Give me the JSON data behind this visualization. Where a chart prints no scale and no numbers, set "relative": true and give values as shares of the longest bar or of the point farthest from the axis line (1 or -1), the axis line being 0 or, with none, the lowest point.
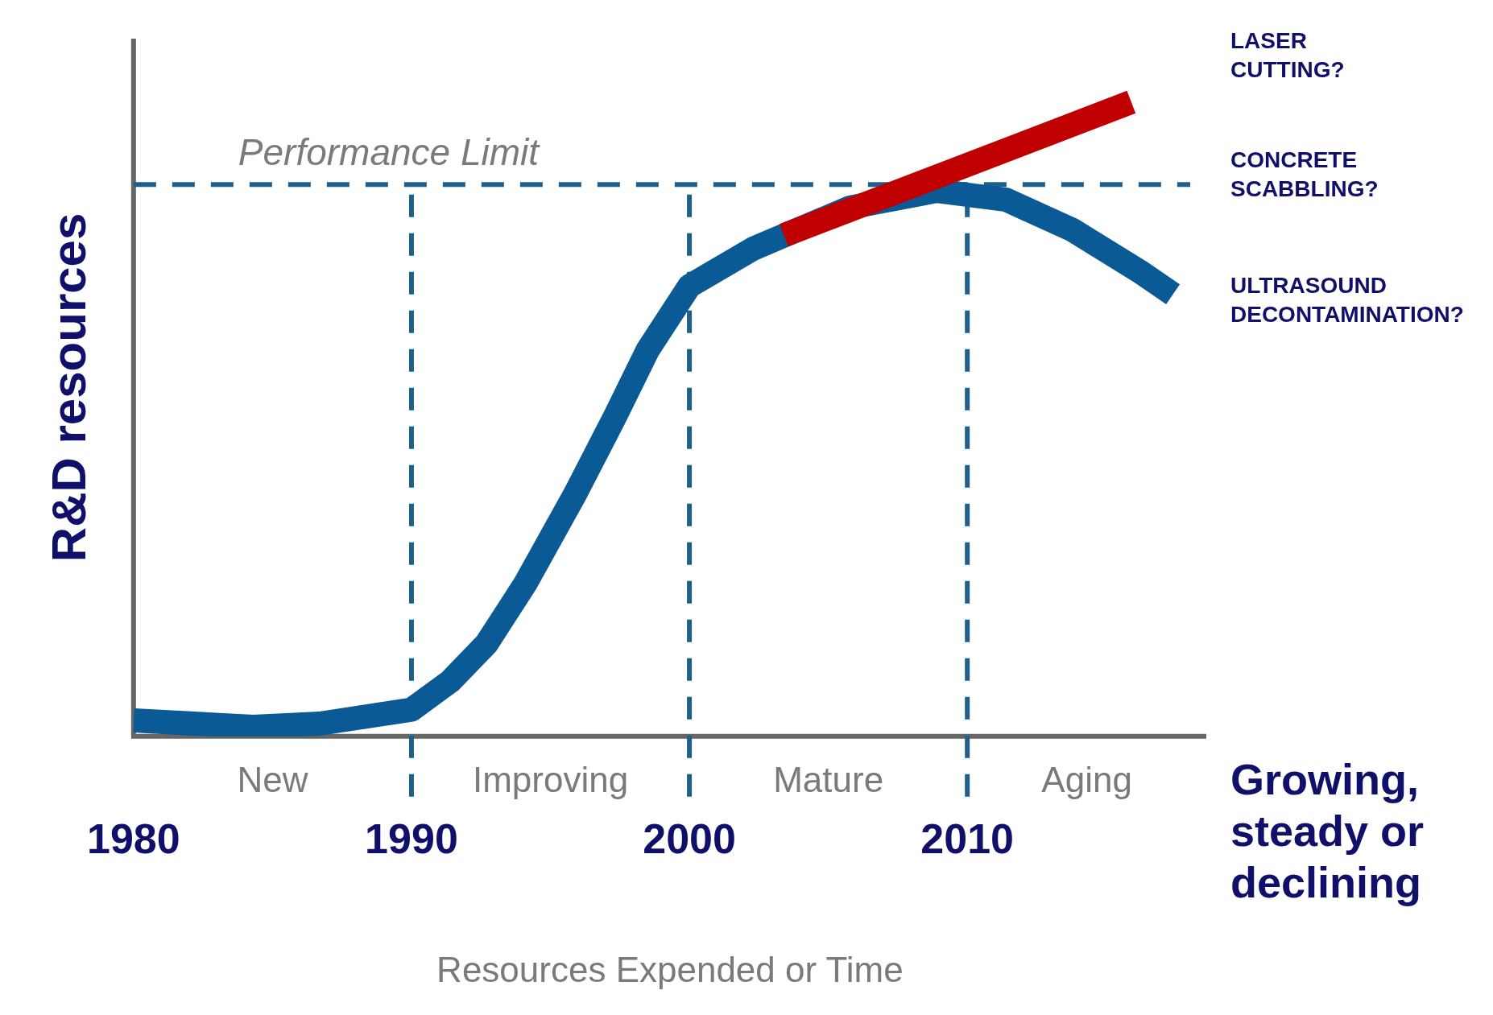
{
  "chart_data": {
    "type": "line",
    "xlabel": "Resources Expended or Time",
    "ylabel": "R&D resources",
    "relative": true,
    "xlim": [
      1980,
      2018.6
    ],
    "xticks": [
      1980,
      1990,
      2000,
      2010
    ],
    "series": [
      {
        "color": "#0a5a96",
        "x": [
          1980,
          1984.3,
          1986.7,
          1990,
          1991.4,
          1992.7,
          1994.1,
          1995.9,
          1997.3,
          1998.5,
          2000,
          2002.3,
          2005.8,
          2008.9,
          2011.4,
          2013.8,
          2016.2,
          2017.4
        ],
        "values": [
          0.025,
          0.015,
          0.02,
          0.042,
          0.087,
          0.146,
          0.241,
          0.383,
          0.502,
          0.609,
          0.71,
          0.769,
          0.834,
          0.86,
          0.846,
          0.798,
          0.733,
          0.697
        ]
      },
      {
        "color": "#c00000",
        "x": [
          2003.4,
          2015.9
        ],
        "values": [
          0.79,
          1
        ]
      }
    ],
    "ref_lines": [
      {
        "axis": "y",
        "value": 0.87,
        "label": "Performance Limit",
        "line_style": "dashed",
        "color": "#1f5f8b"
      },
      {
        "axis": "x",
        "value": 1990,
        "label": null,
        "line_style": "dashed",
        "color": "#1f5f8b"
      },
      {
        "axis": "x",
        "value": 2000,
        "label": null,
        "line_style": "dashed",
        "color": "#1f5f8b"
      },
      {
        "axis": "x",
        "value": 2010,
        "label": null,
        "line_style": "dashed",
        "color": "#1f5f8b"
      }
    ],
    "annotations": [
      "LASER CUTTING?",
      "CONCRETE SCABBLING?",
      "ULTRASOUND DECONTAMINATION?",
      "New",
      "Improving",
      "Mature",
      "Aging",
      "Growing, steady or declining"
    ]
  }
}
